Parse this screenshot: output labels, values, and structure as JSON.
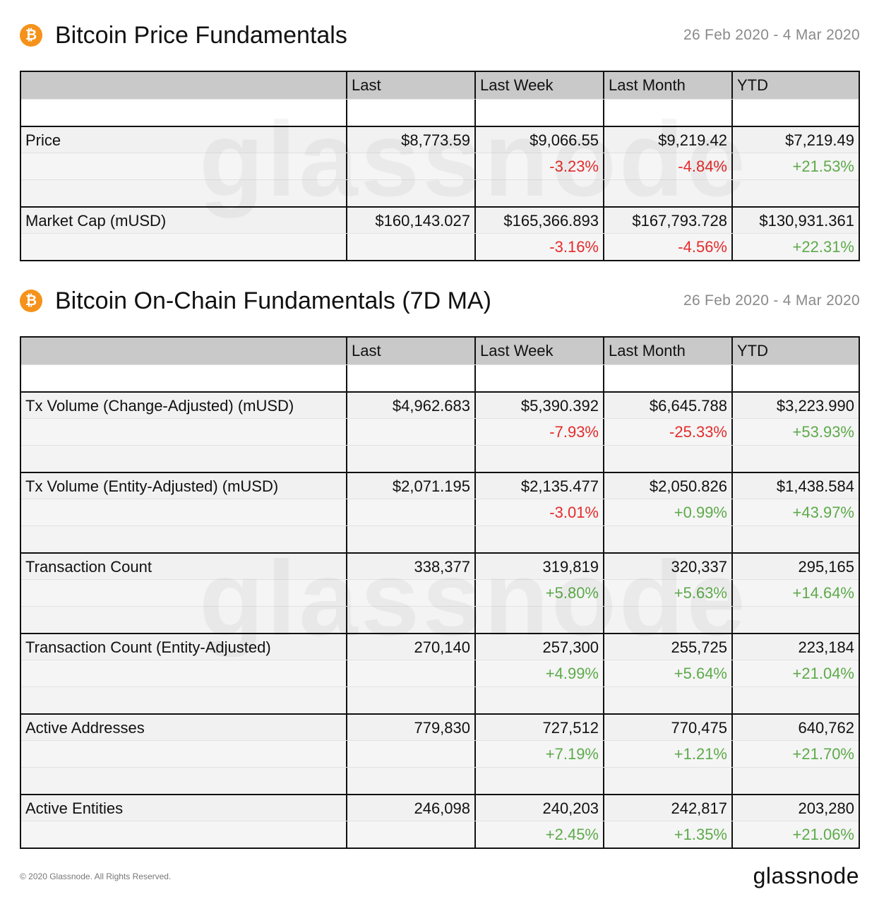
{
  "price_section": {
    "icon": "bitcoin-icon",
    "title": "Bitcoin Price Fundamentals",
    "date_range": "26 Feb 2020 - 4 Mar 2020",
    "columns": [
      "",
      "Last",
      "Last Week",
      "Last Month",
      "YTD"
    ],
    "rows": [
      {
        "label": "Price",
        "values": [
          "$8,773.59",
          "$9,066.55",
          "$9,219.42",
          "$7,219.49"
        ],
        "changes": [
          "",
          "-3.23%",
          "-4.84%",
          "+21.53%"
        ]
      },
      {
        "label": "Market Cap (mUSD)",
        "values": [
          "$160,143.027",
          "$165,366.893",
          "$167,793.728",
          "$130,931.361"
        ],
        "changes": [
          "",
          "-3.16%",
          "-4.56%",
          "+22.31%"
        ]
      }
    ]
  },
  "onchain_section": {
    "icon": "bitcoin-icon",
    "title": "Bitcoin On-Chain Fundamentals (7D MA)",
    "date_range": "26 Feb 2020 - 4 Mar 2020",
    "columns": [
      "",
      "Last",
      "Last Week",
      "Last Month",
      "YTD"
    ],
    "rows": [
      {
        "label": "Tx Volume (Change-Adjusted) (mUSD)",
        "values": [
          "$4,962.683",
          "$5,390.392",
          "$6,645.788",
          "$3,223.990"
        ],
        "changes": [
          "",
          "-7.93%",
          "-25.33%",
          "+53.93%"
        ]
      },
      {
        "label": "Tx Volume (Entity-Adjusted) (mUSD)",
        "values": [
          "$2,071.195",
          "$2,135.477",
          "$2,050.826",
          "$1,438.584"
        ],
        "changes": [
          "",
          "-3.01%",
          "+0.99%",
          "+43.97%"
        ]
      },
      {
        "label": "Transaction Count",
        "values": [
          "338,377",
          "319,819",
          "320,337",
          "295,165"
        ],
        "changes": [
          "",
          "+5.80%",
          "+5.63%",
          "+14.64%"
        ]
      },
      {
        "label": "Transaction Count (Entity-Adjusted)",
        "values": [
          "270,140",
          "257,300",
          "255,725",
          "223,184"
        ],
        "changes": [
          "",
          "+4.99%",
          "+5.64%",
          "+21.04%"
        ]
      },
      {
        "label": "Active Addresses",
        "values": [
          "779,830",
          "727,512",
          "770,475",
          "640,762"
        ],
        "changes": [
          "",
          "+7.19%",
          "+1.21%",
          "+21.70%"
        ]
      },
      {
        "label": "Active Entities",
        "values": [
          "246,098",
          "240,203",
          "242,817",
          "203,280"
        ],
        "changes": [
          "",
          "+2.45%",
          "+1.35%",
          "+21.06%"
        ]
      }
    ]
  },
  "watermark": "glassnode",
  "footer": {
    "copyright": "© 2020 Glassnode. All Rights Reserved.",
    "logo": "glassnode"
  },
  "colors": {
    "bitcoin_orange": "#f5921b",
    "negative": "#e52b2b",
    "positive": "#5daa4a",
    "header_gray": "#c9c9c9"
  }
}
